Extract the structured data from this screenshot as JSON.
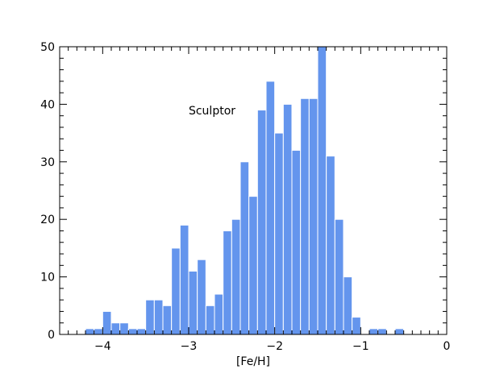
{
  "chart_data": {
    "type": "bar",
    "title": "",
    "annotation": "Sculptor",
    "xlabel": "[Fe/H]",
    "ylabel": "",
    "xlim": [
      -4.5,
      0
    ],
    "ylim": [
      0,
      50
    ],
    "xticks": [
      -4,
      -3,
      -2,
      -1,
      0
    ],
    "xtick_labels": [
      "−4",
      "−3",
      "−2",
      "−1",
      "0"
    ],
    "yticks": [
      0,
      10,
      20,
      30,
      40,
      50
    ],
    "ytick_labels": [
      "0",
      "10",
      "20",
      "30",
      "40",
      "50"
    ],
    "grid": false,
    "bar_color": "#6495ed",
    "bin_width": 0.1,
    "bin_left_edges": [
      -4.2,
      -4.1,
      -4.0,
      -3.9,
      -3.8,
      -3.7,
      -3.6,
      -3.5,
      -3.4,
      -3.3,
      -3.2,
      -3.1,
      -3.0,
      -2.9,
      -2.8,
      -2.7,
      -2.6,
      -2.5,
      -2.4,
      -2.3,
      -2.2,
      -2.1,
      -2.0,
      -1.9,
      -1.8,
      -1.7,
      -1.6,
      -1.5,
      -1.4,
      -1.3,
      -1.2,
      -1.1,
      -1.0,
      -0.9,
      -0.8,
      -0.7,
      -0.6,
      -0.5,
      -0.4
    ],
    "values": [
      1,
      1,
      4,
      2,
      2,
      1,
      1,
      6,
      6,
      5,
      15,
      19,
      11,
      13,
      5,
      7,
      18,
      20,
      30,
      24,
      39,
      44,
      35,
      40,
      32,
      41,
      41,
      50,
      31,
      20,
      10,
      3,
      0,
      1,
      1,
      0,
      1,
      0,
      0
    ]
  }
}
